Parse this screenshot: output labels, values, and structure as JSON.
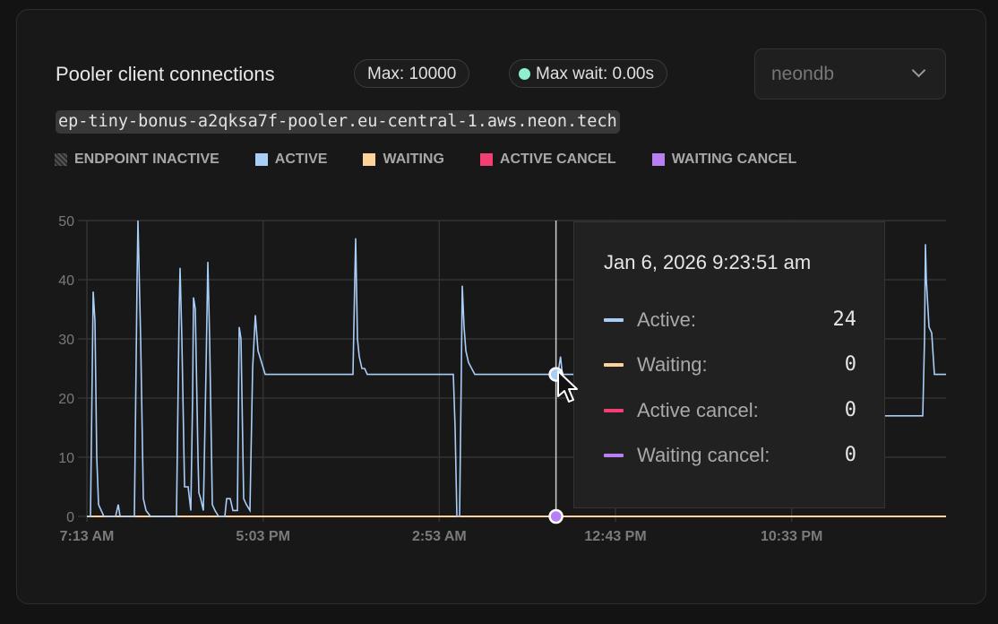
{
  "header": {
    "title": "Pooler client connections",
    "max_badge": "Max: 10000",
    "max_wait_badge": "Max wait: 0.00s",
    "status_dot_color": "#8ff0d0",
    "database_select": {
      "value": "neondb",
      "icon": "chevron-down-icon"
    },
    "host": "ep-tiny-bonus-a2qksa7f-pooler.eu-central-1.aws.neon.tech"
  },
  "legend": [
    {
      "label": "ENDPOINT INACTIVE",
      "color": "hatched"
    },
    {
      "label": "ACTIVE",
      "color": "#a8cdf7"
    },
    {
      "label": "WAITING",
      "color": "#ffd29a"
    },
    {
      "label": "ACTIVE CANCEL",
      "color": "#f43f74"
    },
    {
      "label": "WAITING CANCEL",
      "color": "#b77ff0"
    }
  ],
  "tooltip": {
    "date": "Jan 6, 2026 9:23:51 am",
    "time": "2026-01-06T09:23:51",
    "rows": [
      {
        "label": "Active:",
        "value": "24",
        "color": "#a8cdf7"
      },
      {
        "label": "Waiting:",
        "value": "0",
        "color": "#ffd29a"
      },
      {
        "label": "Active cancel:",
        "value": "0",
        "color": "#f43f74"
      },
      {
        "label": "Waiting cancel:",
        "value": "0",
        "color": "#b77ff0"
      }
    ]
  },
  "chart_data": {
    "type": "line",
    "xlim": [
      "2026-01-05T07:13",
      "2026-01-07T07:10"
    ],
    "ylim": [
      0,
      50
    ],
    "grid": true,
    "yticks": [
      0,
      10,
      20,
      30,
      40,
      50
    ],
    "xticks": [
      {
        "t": "2026-01-05T07:13",
        "label": "7:13 AM"
      },
      {
        "t": "2026-01-05T17:03",
        "label": "5:03 PM"
      },
      {
        "t": "2026-01-06T02:53",
        "label": "2:53 AM"
      },
      {
        "t": "2026-01-06T12:43",
        "label": "12:43 PM"
      },
      {
        "t": "2026-01-06T22:33",
        "label": "10:33 PM"
      }
    ],
    "series": [
      {
        "name": "Active",
        "color": "#a8cdf7",
        "points": [
          [
            "2026-01-05T07:13",
            0
          ],
          [
            "2026-01-05T07:25",
            0
          ],
          [
            "2026-01-05T07:31",
            25
          ],
          [
            "2026-01-05T07:34",
            38
          ],
          [
            "2026-01-05T07:40",
            33
          ],
          [
            "2026-01-05T07:46",
            10
          ],
          [
            "2026-01-05T07:52",
            2
          ],
          [
            "2026-01-05T08:01",
            1
          ],
          [
            "2026-01-05T08:10",
            0
          ],
          [
            "2026-01-05T08:49",
            0
          ],
          [
            "2026-01-05T08:58",
            2
          ],
          [
            "2026-01-05T09:04",
            0
          ],
          [
            "2026-01-05T09:52",
            0
          ],
          [
            "2026-01-05T10:01",
            40
          ],
          [
            "2026-01-05T10:04",
            50
          ],
          [
            "2026-01-05T10:13",
            30
          ],
          [
            "2026-01-05T10:22",
            3
          ],
          [
            "2026-01-05T10:31",
            1
          ],
          [
            "2026-01-05T10:46",
            0
          ],
          [
            "2026-01-05T12:13",
            0
          ],
          [
            "2026-01-05T12:22",
            35
          ],
          [
            "2026-01-05T12:25",
            42
          ],
          [
            "2026-01-05T12:31",
            30
          ],
          [
            "2026-01-05T12:40",
            5
          ],
          [
            "2026-01-05T12:52",
            5
          ],
          [
            "2026-01-05T13:01",
            1
          ],
          [
            "2026-01-05T13:07",
            20
          ],
          [
            "2026-01-05T13:10",
            37
          ],
          [
            "2026-01-05T13:16",
            35
          ],
          [
            "2026-01-05T13:25",
            10
          ],
          [
            "2026-01-05T13:28",
            4
          ],
          [
            "2026-01-05T13:34",
            3
          ],
          [
            "2026-01-05T13:43",
            1
          ],
          [
            "2026-01-05T13:52",
            25
          ],
          [
            "2026-01-05T13:58",
            43
          ],
          [
            "2026-01-05T14:04",
            30
          ],
          [
            "2026-01-05T14:13",
            2
          ],
          [
            "2026-01-05T14:22",
            1
          ],
          [
            "2026-01-05T14:34",
            0
          ],
          [
            "2026-01-05T14:55",
            0
          ],
          [
            "2026-01-05T15:01",
            3
          ],
          [
            "2026-01-05T15:13",
            3
          ],
          [
            "2026-01-05T15:22",
            1
          ],
          [
            "2026-01-05T15:37",
            1
          ],
          [
            "2026-01-05T15:43",
            32
          ],
          [
            "2026-01-05T15:49",
            30
          ],
          [
            "2026-01-05T15:58",
            3
          ],
          [
            "2026-01-05T16:07",
            2
          ],
          [
            "2026-01-05T16:19",
            1
          ],
          [
            "2026-01-05T16:28",
            25
          ],
          [
            "2026-01-05T16:37",
            34
          ],
          [
            "2026-01-05T16:46",
            28
          ],
          [
            "2026-01-05T16:58",
            26
          ],
          [
            "2026-01-05T17:10",
            24
          ],
          [
            "2026-01-05T22:04",
            24
          ],
          [
            "2026-01-05T22:10",
            40
          ],
          [
            "2026-01-05T22:13",
            47
          ],
          [
            "2026-01-05T22:19",
            30
          ],
          [
            "2026-01-05T22:25",
            27
          ],
          [
            "2026-01-05T22:34",
            25
          ],
          [
            "2026-01-05T22:43",
            25
          ],
          [
            "2026-01-05T22:52",
            24
          ],
          [
            "2026-01-06T03:40",
            24
          ],
          [
            "2026-01-06T03:46",
            15
          ],
          [
            "2026-01-06T03:52",
            0
          ],
          [
            "2026-01-06T04:01",
            0
          ],
          [
            "2026-01-06T04:07",
            25
          ],
          [
            "2026-01-06T04:10",
            39
          ],
          [
            "2026-01-06T04:16",
            32
          ],
          [
            "2026-01-06T04:22",
            28
          ],
          [
            "2026-01-06T04:31",
            26
          ],
          [
            "2026-01-06T04:52",
            24
          ],
          [
            "2026-01-06T09:24",
            24
          ],
          [
            "2026-01-06T09:30",
            24
          ],
          [
            "2026-01-06T09:39",
            27
          ],
          [
            "2026-01-06T09:45",
            24
          ],
          [
            "2026-01-06T23:22",
            24
          ],
          [
            "2026-01-06T23:28",
            17
          ],
          [
            "2026-01-07T05:52",
            17
          ],
          [
            "2026-01-07T05:58",
            30
          ],
          [
            "2026-01-07T06:01",
            46
          ],
          [
            "2026-01-07T06:04",
            40
          ],
          [
            "2026-01-07T06:13",
            32
          ],
          [
            "2026-01-07T06:22",
            31
          ],
          [
            "2026-01-07T06:31",
            24
          ],
          [
            "2026-01-07T07:10",
            24
          ]
        ]
      },
      {
        "name": "Waiting",
        "color": "#ffd29a",
        "points": [
          [
            "2026-01-05T07:13",
            0
          ],
          [
            "2026-01-07T07:10",
            0
          ]
        ]
      },
      {
        "name": "Active cancel",
        "color": "#f43f74",
        "points": [
          [
            "2026-01-05T07:13",
            0
          ],
          [
            "2026-01-07T07:10",
            0
          ]
        ]
      },
      {
        "name": "Waiting cancel",
        "color": "#b77ff0",
        "points": [
          [
            "2026-01-05T07:13",
            0
          ],
          [
            "2026-01-07T07:10",
            0
          ]
        ]
      }
    ]
  }
}
